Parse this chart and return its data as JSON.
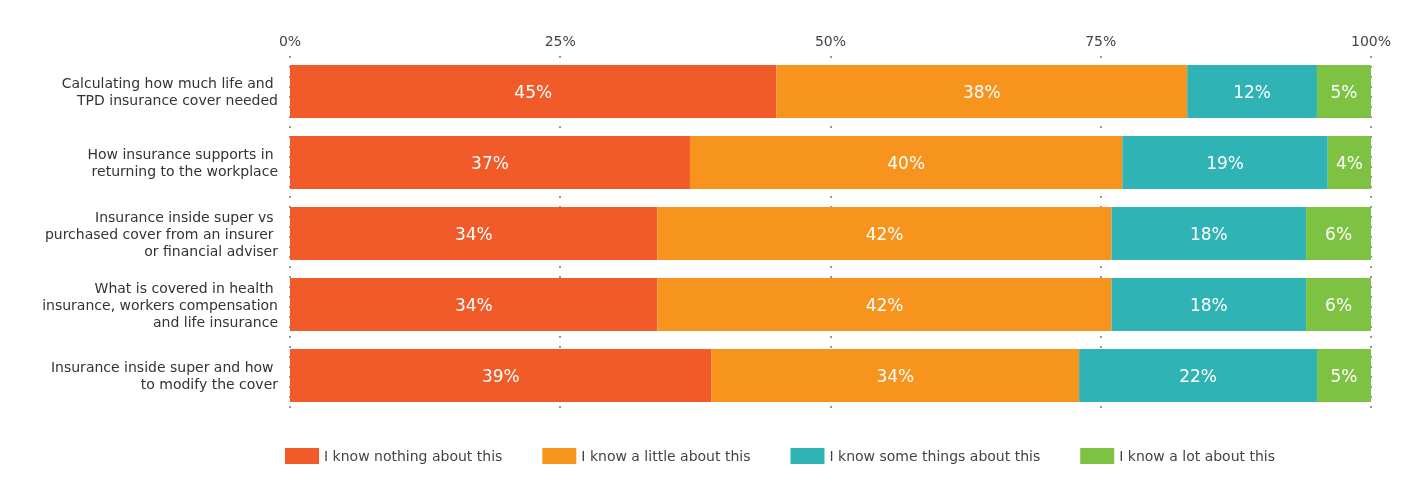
{
  "chart_data": {
    "type": "bar",
    "orientation": "horizontal",
    "stacked": true,
    "categories": [
      "Calculating how much life and TPD insurance cover needed",
      "How insurance supports in returning to the workplace",
      "Insurance inside super vs purchased cover from an insurer or financial adviser",
      "What is covered in health insurance, workers compensation and life insurance",
      "Insurance inside super and how to modify the cover"
    ],
    "series": [
      {
        "name": "I know nothing about this",
        "color": "#f15a29",
        "values": [
          45,
          37,
          34,
          34,
          39
        ],
        "value_labels": [
          "45%",
          "37%",
          "34%",
          "34%",
          "39%"
        ]
      },
      {
        "name": "I know a little about this",
        "color": "#f7941d",
        "values": [
          38,
          40,
          42,
          42,
          34
        ],
        "value_labels": [
          "38%",
          "40%",
          "42%",
          "42%",
          "34%"
        ]
      },
      {
        "name": "I know some things about this",
        "color": "#2fb3b5",
        "values": [
          12,
          19,
          18,
          18,
          22
        ],
        "value_labels": [
          "12%",
          "19%",
          "18%",
          "18%",
          "22%"
        ]
      },
      {
        "name": "I know a lot about this",
        "color": "#7dc242",
        "values": [
          5,
          4,
          6,
          6,
          5
        ],
        "value_labels": [
          "5%",
          "4%",
          "6%",
          "6%",
          "5%"
        ]
      }
    ],
    "xlim": [
      0,
      100
    ],
    "xticks": [
      {
        "value": 0,
        "label": "0%"
      },
      {
        "value": 25,
        "label": "25%"
      },
      {
        "value": 50,
        "label": "50%"
      },
      {
        "value": 75,
        "label": "75%"
      },
      {
        "value": 100,
        "label": "100%"
      }
    ],
    "grid": "x",
    "legend": "bottom"
  }
}
